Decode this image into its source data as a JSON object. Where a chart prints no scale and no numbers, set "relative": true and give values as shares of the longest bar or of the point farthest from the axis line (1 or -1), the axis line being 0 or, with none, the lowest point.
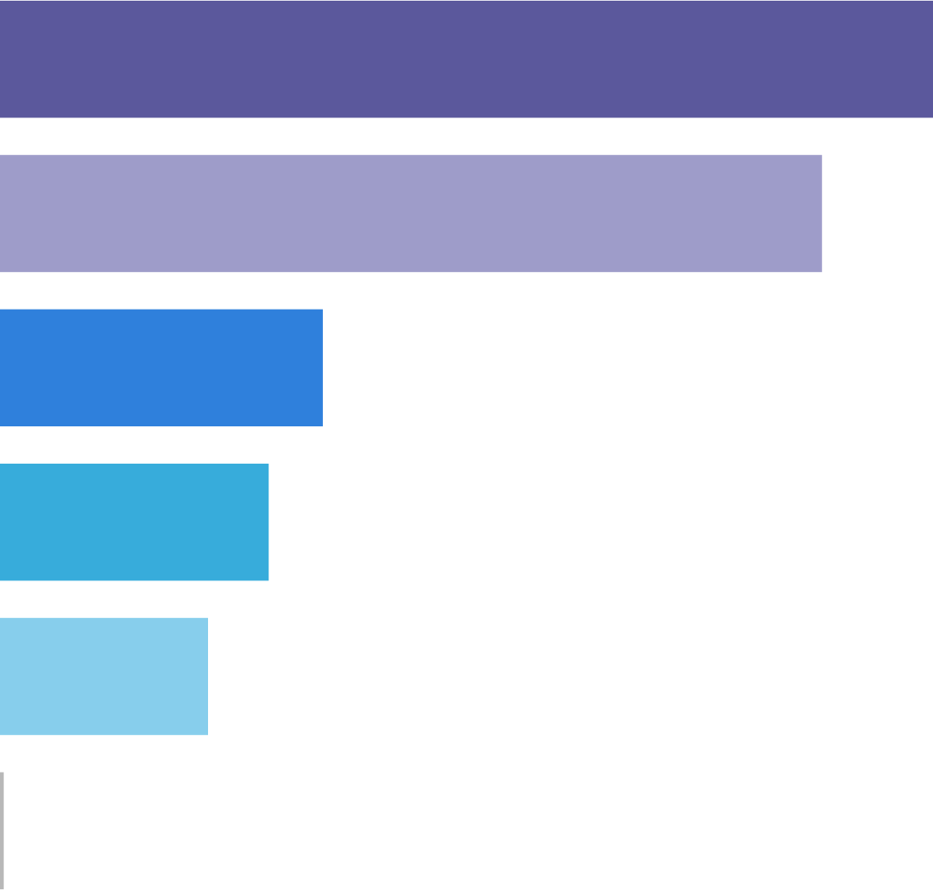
{
  "chart_data": {
    "type": "bar",
    "orientation": "horizontal",
    "relative": true,
    "categories": [
      null,
      null,
      null,
      null,
      null,
      null
    ],
    "values": [
      1,
      0.881,
      0.346,
      0.288,
      0.223,
      0.004
    ],
    "colors": [
      "#5b589c",
      "#9e9cc9",
      "#2f80dc",
      "#37acdb",
      "#87ceec",
      "#b8b8b8"
    ]
  }
}
